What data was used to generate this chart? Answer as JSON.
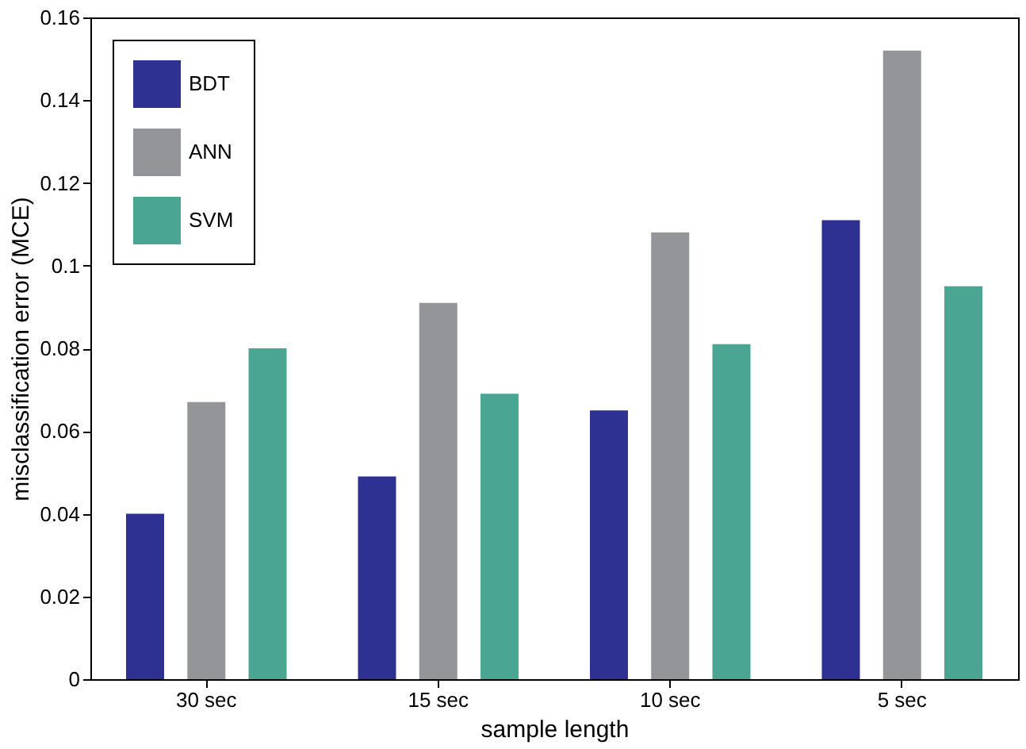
{
  "chart_data": {
    "type": "bar",
    "xlabel": "sample length",
    "ylabel": "misclassification error (MCE)",
    "categories": [
      "30 sec",
      "15 sec",
      "10 sec",
      "5 sec"
    ],
    "series": [
      {
        "name": "BDT",
        "color": "#2e3192",
        "values": [
          0.04,
          0.049,
          0.065,
          0.111
        ]
      },
      {
        "name": "ANN",
        "color": "#939598",
        "values": [
          0.067,
          0.091,
          0.108,
          0.152
        ]
      },
      {
        "name": "SVM",
        "color": "#4ba593",
        "values": [
          0.08,
          0.069,
          0.081,
          0.095
        ]
      }
    ],
    "ylim": [
      0,
      0.16
    ],
    "yticks": [
      0,
      0.02,
      0.04,
      0.06,
      0.08,
      0.1,
      0.12,
      0.14,
      0.16
    ],
    "grid": false,
    "legend": "top left"
  }
}
